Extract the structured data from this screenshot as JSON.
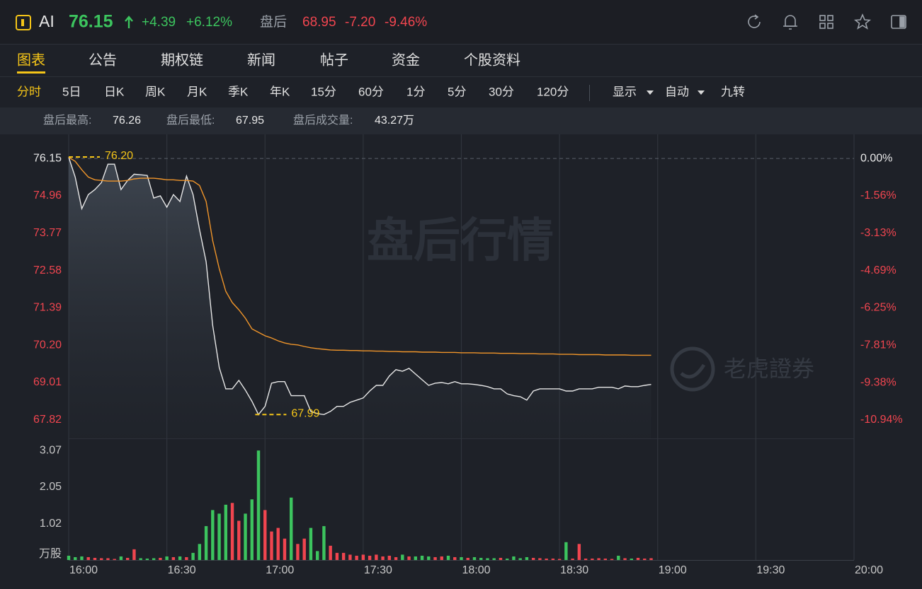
{
  "header": {
    "symbol": "AI",
    "price": "76.15",
    "change": "+4.39",
    "change_pct": "+6.12%",
    "session": "盘后",
    "after_price": "68.95",
    "after_change": "-7.20",
    "after_pct": "-9.46%"
  },
  "tabs": [
    "图表",
    "公告",
    "期权链",
    "新闻",
    "帖子",
    "资金",
    "个股资料"
  ],
  "toolbar": [
    "分时",
    "5日",
    "日K",
    "周K",
    "月K",
    "季K",
    "年K",
    "15分",
    "60分",
    "1分",
    "5分",
    "30分",
    "120分"
  ],
  "selectors": [
    "显示",
    "自动",
    "九转"
  ],
  "stats": [
    {
      "label": "盘后最高:",
      "value": "76.26"
    },
    {
      "label": "盘后最低:",
      "value": "67.95"
    },
    {
      "label": "盘后成交量:",
      "value": "43.27万"
    }
  ],
  "watermark": "盘后行情",
  "logo": "老虎證券",
  "chart_data": [
    {
      "type": "line",
      "x": [
        "16:00",
        "16:02",
        "16:04",
        "16:06",
        "16:08",
        "16:10",
        "16:12",
        "16:14",
        "16:16",
        "16:18",
        "16:20",
        "16:22",
        "16:24",
        "16:26",
        "16:28",
        "16:30",
        "16:32",
        "16:34",
        "16:36",
        "16:38",
        "16:40",
        "16:42",
        "16:44",
        "16:46",
        "16:48",
        "16:50",
        "16:52",
        "16:54",
        "16:56",
        "16:58",
        "17:00",
        "17:02",
        "17:04",
        "17:06",
        "17:08",
        "17:10",
        "17:12",
        "17:14",
        "17:16",
        "17:18",
        "17:20",
        "17:22",
        "17:24",
        "17:26",
        "17:28",
        "17:30",
        "17:32",
        "17:34",
        "17:36",
        "17:38",
        "17:40",
        "17:42",
        "17:44",
        "17:46",
        "17:48",
        "17:50",
        "17:52",
        "17:54",
        "17:56",
        "17:58",
        "18:00",
        "18:02",
        "18:04",
        "18:06",
        "18:08",
        "18:10",
        "18:12",
        "18:14",
        "18:16",
        "18:18",
        "18:20",
        "18:22",
        "18:24",
        "18:26",
        "18:28",
        "18:30",
        "18:32",
        "18:34",
        "18:36",
        "18:38",
        "18:40",
        "18:42",
        "18:44",
        "18:46",
        "18:48",
        "18:50",
        "18:52",
        "18:54",
        "18:56",
        "18:58"
      ],
      "series": [
        {
          "color": "#e8e8e8",
          "values": [
            76.19,
            75.56,
            74.55,
            75.0,
            75.16,
            75.38,
            75.97,
            75.97,
            75.16,
            75.45,
            75.65,
            75.63,
            75.61,
            74.89,
            74.96,
            74.6,
            75.0,
            74.78,
            75.59,
            75.0,
            73.88,
            72.86,
            70.84,
            69.49,
            68.81,
            68.81,
            69.08,
            68.77,
            68.41,
            67.99,
            68.25,
            68.99,
            69.04,
            69.04,
            68.59,
            68.59,
            68.59,
            68.09,
            68.02,
            67.99,
            68.09,
            68.25,
            68.25,
            68.38,
            68.45,
            68.52,
            68.74,
            68.92,
            68.92,
            69.22,
            69.42,
            69.37,
            69.46,
            69.28,
            69.1,
            68.92,
            68.99,
            69.01,
            68.97,
            69.04,
            68.97,
            68.97,
            68.95,
            68.92,
            68.88,
            68.81,
            68.81,
            68.65,
            68.59,
            68.56,
            68.45,
            68.74,
            68.81,
            68.81,
            68.81,
            68.81,
            68.74,
            68.74,
            68.81,
            68.81,
            68.81,
            68.86,
            68.86,
            68.86,
            68.81,
            68.9,
            68.88,
            68.88,
            68.92,
            68.95
          ]
        },
        {
          "color": "#f0952a",
          "values": [
            76.19,
            76.06,
            75.79,
            75.56,
            75.47,
            75.45,
            75.43,
            75.43,
            75.43,
            75.45,
            75.5,
            75.52,
            75.52,
            75.52,
            75.5,
            75.47,
            75.47,
            75.45,
            75.45,
            75.43,
            75.29,
            74.78,
            73.54,
            72.64,
            71.92,
            71.56,
            71.33,
            71.06,
            70.72,
            70.61,
            70.5,
            70.43,
            70.34,
            70.27,
            70.23,
            70.21,
            70.16,
            70.12,
            70.09,
            70.07,
            70.05,
            70.04,
            70.04,
            70.03,
            70.03,
            70.02,
            70.02,
            70.01,
            70.01,
            70.0,
            70.0,
            69.99,
            69.99,
            69.99,
            69.98,
            69.98,
            69.98,
            69.97,
            69.97,
            69.97,
            69.96,
            69.96,
            69.96,
            69.95,
            69.95,
            69.95,
            69.94,
            69.94,
            69.94,
            69.93,
            69.93,
            69.93,
            69.92,
            69.92,
            69.92,
            69.91,
            69.91,
            69.91,
            69.9,
            69.9,
            69.9,
            69.9,
            69.89,
            69.89,
            69.89,
            69.89,
            69.88,
            69.88,
            69.88,
            69.88
          ]
        }
      ],
      "xlim": [
        "16:00",
        "20:00"
      ],
      "ylim": [
        67.23,
        76.92
      ],
      "yticks": [
        76.15,
        74.96,
        73.77,
        72.58,
        71.39,
        {
          "value": 70.2,
          "label": "70.20"
        },
        69.01,
        67.82
      ],
      "y2lim": [
        -11.71,
        1.01
      ],
      "y2ticks": [
        {
          "value": 0,
          "label": "0.00%"
        },
        {
          "value": -1.56,
          "label": "-1.56%"
        },
        {
          "value": -3.13,
          "label": "-3.13%"
        },
        {
          "value": -4.69,
          "label": "-4.69%"
        },
        {
          "value": -6.25,
          "label": "-6.25%"
        },
        {
          "value": -7.81,
          "label": "-7.81%"
        },
        {
          "value": -9.38,
          "label": "-9.38%"
        },
        {
          "value": -10.94,
          "label": "-10.94%"
        }
      ],
      "annotations": [
        {
          "x": "16:00",
          "value": 76.2,
          "label": "76.20"
        },
        {
          "x": "16:57",
          "value": 67.99,
          "label": "67.99"
        }
      ],
      "up_color": "#f0454f",
      "down_color": "#3cc45e",
      "neutral_color": "#e8e8e8"
    },
    {
      "type": "bar",
      "y_label": "万股",
      "x": [
        "16:00",
        "16:02",
        "16:04",
        "16:06",
        "16:08",
        "16:10",
        "16:12",
        "16:14",
        "16:16",
        "16:18",
        "16:20",
        "16:22",
        "16:24",
        "16:26",
        "16:28",
        "16:30",
        "16:32",
        "16:34",
        "16:36",
        "16:38",
        "16:40",
        "16:42",
        "16:44",
        "16:46",
        "16:48",
        "16:50",
        "16:52",
        "16:54",
        "16:56",
        "16:58",
        "17:00",
        "17:02",
        "17:04",
        "17:06",
        "17:08",
        "17:10",
        "17:12",
        "17:14",
        "17:16",
        "17:18",
        "17:20",
        "17:22",
        "17:24",
        "17:26",
        "17:28",
        "17:30",
        "17:32",
        "17:34",
        "17:36",
        "17:38",
        "17:40",
        "17:42",
        "17:44",
        "17:46",
        "17:48",
        "17:50",
        "17:52",
        "17:54",
        "17:56",
        "17:58",
        "18:00",
        "18:02",
        "18:04",
        "18:06",
        "18:08",
        "18:10",
        "18:12",
        "18:14",
        "18:16",
        "18:18",
        "18:20",
        "18:22",
        "18:24",
        "18:26",
        "18:28",
        "18:30",
        "18:32",
        "18:34",
        "18:36",
        "18:38",
        "18:40",
        "18:42",
        "18:44",
        "18:46",
        "18:48",
        "18:50",
        "18:52",
        "18:54",
        "18:56",
        "18:58"
      ],
      "values": [
        0.12,
        0.08,
        0.1,
        0.08,
        0.06,
        0.05,
        0.05,
        0.03,
        0.1,
        0.06,
        0.3,
        0.05,
        0.04,
        0.05,
        0.06,
        0.1,
        0.08,
        0.1,
        0.08,
        0.2,
        0.45,
        0.95,
        1.4,
        1.3,
        1.55,
        1.6,
        1.1,
        1.3,
        1.7,
        3.07,
        1.4,
        0.8,
        0.9,
        0.6,
        1.75,
        0.45,
        0.6,
        0.9,
        0.25,
        0.95,
        0.4,
        0.2,
        0.2,
        0.15,
        0.12,
        0.15,
        0.12,
        0.15,
        0.1,
        0.12,
        0.08,
        0.15,
        0.1,
        0.1,
        0.12,
        0.1,
        0.08,
        0.1,
        0.12,
        0.08,
        0.08,
        0.06,
        0.08,
        0.06,
        0.05,
        0.05,
        0.06,
        0.04,
        0.1,
        0.05,
        0.08,
        0.06,
        0.05,
        0.04,
        0.04,
        0.03,
        0.5,
        0.04,
        0.45,
        0.04,
        0.04,
        0.05,
        0.04,
        0.03,
        0.12,
        0.05,
        0.04,
        0.06,
        0.04,
        0.05
      ],
      "xlim": [
        "16:00",
        "20:00"
      ],
      "xticks": [
        "16:00",
        "16:30",
        "17:00",
        "17:30",
        "18:00",
        "18:30",
        "19:00",
        "19:30",
        "20:00"
      ],
      "ylim": [
        0,
        3.37
      ],
      "yticks": [
        1.02,
        2.05,
        3.07
      ]
    }
  ]
}
